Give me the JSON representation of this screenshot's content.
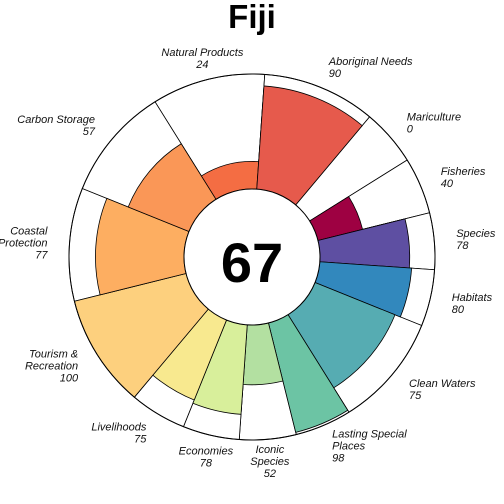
{
  "chart_data": {
    "type": "flower-plot",
    "title": "Fiji",
    "index_score": "67",
    "max_score": 100,
    "petals": [
      {
        "name": "Natural Products",
        "label_lines": [
          "Natural Products"
        ],
        "score": 24,
        "score_label": "24",
        "color": "#F46D43",
        "weight": 1
      },
      {
        "name": "Aboriginal Needs",
        "label_lines": [
          "Aboriginal Needs"
        ],
        "score": 90,
        "score_label": "90",
        "color": "#E65A4C",
        "weight": 1
      },
      {
        "name": "Mariculture",
        "label_lines": [
          "Mariculture"
        ],
        "score": 0,
        "score_label": "0",
        "color": "#D53E4F",
        "weight": 0.5
      },
      {
        "name": "Fisheries",
        "label_lines": [
          "Fisheries"
        ],
        "score": 40,
        "score_label": "40",
        "color": "#9E0142",
        "weight": 0.5
      },
      {
        "name": "Species",
        "label_lines": [
          "Species"
        ],
        "score": 78,
        "score_label": "78",
        "color": "#5E4FA2",
        "weight": 0.5
      },
      {
        "name": "Habitats",
        "label_lines": [
          "Habitats"
        ],
        "score": 80,
        "score_label": "80",
        "color": "#3288BD",
        "weight": 0.5
      },
      {
        "name": "Clean Waters",
        "label_lines": [
          "Clean Waters"
        ],
        "score": 75,
        "score_label": "75",
        "color": "#56ACB2",
        "weight": 1
      },
      {
        "name": "Lasting Special Places",
        "label_lines": [
          "Lasting Special",
          "Places"
        ],
        "score": 98,
        "score_label": "98",
        "color": "#6CC4A4",
        "weight": 0.5
      },
      {
        "name": "Iconic Species",
        "label_lines": [
          "Iconic",
          "Species"
        ],
        "score": 52,
        "score_label": "52",
        "color": "#B3E0A1",
        "weight": 0.5
      },
      {
        "name": "Economies",
        "label_lines": [
          "Economies"
        ],
        "score": 78,
        "score_label": "78",
        "color": "#D8EF9B",
        "weight": 0.5
      },
      {
        "name": "Livelihoods",
        "label_lines": [
          "Livelihoods"
        ],
        "score": 75,
        "score_label": "75",
        "color": "#F8E98F",
        "weight": 0.5
      },
      {
        "name": "Tourism & Recreation",
        "label_lines": [
          "Tourism &",
          "Recreation"
        ],
        "score": 100,
        "score_label": "100",
        "color": "#FDD07E",
        "weight": 1
      },
      {
        "name": "Coastal Protection",
        "label_lines": [
          "Coastal",
          "Protection"
        ],
        "score": 77,
        "score_label": "77",
        "color": "#FDAE61",
        "weight": 1
      },
      {
        "name": "Carbon Storage",
        "label_lines": [
          "Carbon Storage"
        ],
        "score": 57,
        "score_label": "57",
        "color": "#FA9757",
        "weight": 1
      }
    ]
  }
}
